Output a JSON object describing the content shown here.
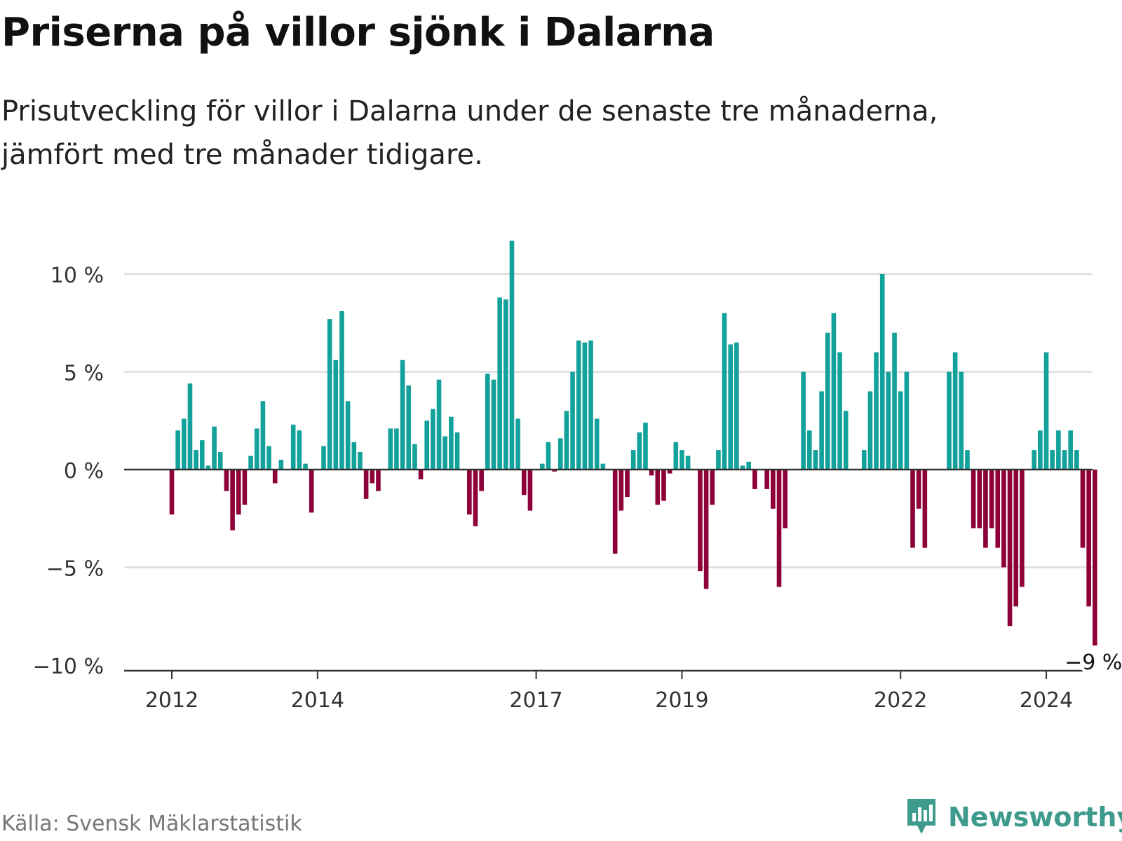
{
  "header": {
    "title": "Priserna på villor sjönk i Dalarna",
    "subtitle_line1": "Prisutveckling för villor i Dalarna under de senaste tre månaderna,",
    "subtitle_line2": "jämfört med tre månader tidigare."
  },
  "footer": {
    "source": "Källa: Svensk Mäklarstatistik",
    "brand": "Newsworthy"
  },
  "colors": {
    "positive": "#12a19b",
    "negative": "#8e0038",
    "grid": "#dddddd",
    "axis": "#333333",
    "brand": "#3d9a8c"
  },
  "chart_data": {
    "type": "bar",
    "title": "Priserna på villor sjönk i Dalarna",
    "xlabel": "",
    "ylabel": "",
    "ylim": [
      -10,
      12
    ],
    "y_ticks": [
      10,
      5,
      0,
      -5,
      -10
    ],
    "y_tick_labels": [
      "10 %",
      "5 %",
      "0 %",
      "−5 %",
      "−10 %"
    ],
    "unit": "%",
    "start": "2012-01",
    "frequency": "monthly",
    "x_ticks": [
      {
        "label": "2012",
        "index": 0
      },
      {
        "label": "2014",
        "index": 24
      },
      {
        "label": "2017",
        "index": 60
      },
      {
        "label": "2019",
        "index": 84
      },
      {
        "label": "2022",
        "index": 120
      },
      {
        "label": "2024",
        "index": 144
      }
    ],
    "values": [
      -2.3,
      2.0,
      2.6,
      4.4,
      1.0,
      1.5,
      0.2,
      2.2,
      0.9,
      -1.1,
      -3.1,
      -2.3,
      -1.8,
      0.7,
      2.1,
      3.5,
      1.2,
      -0.7,
      0.5,
      0.0,
      2.3,
      2.0,
      0.3,
      -2.2,
      0.0,
      1.2,
      7.7,
      5.6,
      8.1,
      3.5,
      1.4,
      0.9,
      -1.5,
      -0.7,
      -1.1,
      0.0,
      2.1,
      2.1,
      5.6,
      4.3,
      1.3,
      -0.5,
      2.5,
      3.1,
      4.6,
      1.7,
      2.7,
      1.9,
      0.0,
      -2.3,
      -2.9,
      -1.1,
      4.9,
      4.6,
      8.8,
      8.7,
      11.7,
      2.6,
      -1.3,
      -2.1,
      0.0,
      0.3,
      1.4,
      -0.1,
      1.6,
      3.0,
      5.0,
      6.6,
      6.5,
      6.6,
      2.6,
      0.3,
      0.0,
      -4.3,
      -2.1,
      -1.4,
      1.0,
      1.9,
      2.4,
      -0.3,
      -1.8,
      -1.6,
      -0.2,
      1.4,
      1.0,
      0.7,
      0.0,
      -5.2,
      -6.1,
      -1.8,
      1.0,
      8.0,
      6.4,
      6.5,
      0.2,
      0.4,
      -1.0,
      0.0,
      -1.0,
      -2.0,
      -6.0,
      -3.0,
      0.0,
      0.0,
      5.0,
      2.0,
      1.0,
      4.0,
      7.0,
      8.0,
      6.0,
      3.0,
      0.0,
      0.0,
      1.0,
      4.0,
      6.0,
      10.0,
      5.0,
      7.0,
      4.0,
      5.0,
      -4.0,
      -2.0,
      -4.0,
      0.0,
      0.0,
      0.0,
      5.0,
      6.0,
      5.0,
      1.0,
      -3.0,
      -3.0,
      -4.0,
      -3.0,
      -4.0,
      -5.0,
      -8.0,
      -7.0,
      -6.0,
      0.0,
      1.0,
      2.0,
      6.0,
      1.0,
      2.0,
      1.0,
      2.0,
      1.0,
      -4.0,
      -7.0,
      -9.0
    ],
    "annotation": {
      "label": "−9 %",
      "index": 152,
      "value": -9.0
    }
  }
}
